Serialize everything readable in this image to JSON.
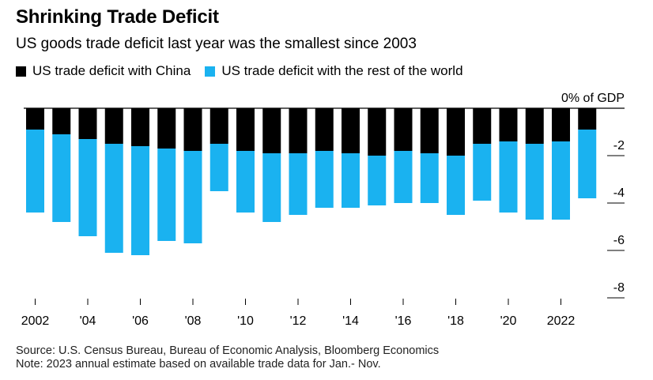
{
  "header": {
    "title": "Shrinking Trade Deficit",
    "subtitle": "US goods trade deficit last year was the smallest since 2003"
  },
  "legend": [
    {
      "label": "US trade deficit with China",
      "color": "#000000"
    },
    {
      "label": "US trade deficit with the rest of the world",
      "color": "#1ab2f0"
    }
  ],
  "footer": {
    "source": "Source: U.S. Census Bureau, Bureau of Economic Analysis, Bloomberg Economics",
    "note": "Note: 2023 annual estimate based on available trade data for Jan.- Nov."
  },
  "chart_data": {
    "type": "bar",
    "stacked": true,
    "categories": [
      "2002",
      "2003",
      "2004",
      "2005",
      "2006",
      "2007",
      "2008",
      "2009",
      "2010",
      "2011",
      "2012",
      "2013",
      "2014",
      "2015",
      "2016",
      "2017",
      "2018",
      "2019",
      "2020",
      "2021",
      "2022",
      "2023"
    ],
    "x_tick_labels": [
      "2002",
      "'04",
      "'06",
      "'08",
      "'10",
      "'12",
      "'14",
      "'16",
      "'18",
      "'20",
      "2022"
    ],
    "series": [
      {
        "name": "US trade deficit with China",
        "color": "#000000",
        "values": [
          -0.9,
          -1.1,
          -1.3,
          -1.5,
          -1.6,
          -1.7,
          -1.8,
          -1.5,
          -1.8,
          -1.9,
          -1.9,
          -1.8,
          -1.9,
          -2.0,
          -1.8,
          -1.9,
          -2.0,
          -1.5,
          -1.4,
          -1.5,
          -1.4,
          -0.9
        ]
      },
      {
        "name": "US trade deficit with the rest of the world",
        "color": "#1ab2f0",
        "values": [
          -3.5,
          -3.7,
          -4.1,
          -4.6,
          -4.6,
          -3.9,
          -3.9,
          -2.0,
          -2.6,
          -2.9,
          -2.6,
          -2.4,
          -2.3,
          -2.1,
          -2.2,
          -2.1,
          -2.5,
          -2.4,
          -3.0,
          -3.2,
          -3.3,
          -2.9
        ]
      }
    ],
    "y_unit_label": "0% of GDP",
    "y_ticks": [
      "-2",
      "-4",
      "-6",
      "-8"
    ],
    "ylim": [
      -8,
      0
    ],
    "grid": false,
    "legend_position": "top-left"
  }
}
